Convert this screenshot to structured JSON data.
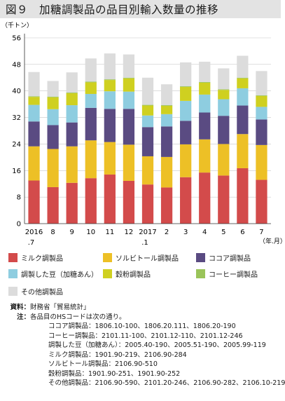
{
  "title": "図９　加糖調製品の品目別輸入数量の推移",
  "chart_data": {
    "type": "bar",
    "stacked": true,
    "unit_label": "（千トン）",
    "x_unit_label": "（年.月）",
    "ylim": [
      0,
      56
    ],
    "yticks": [
      0,
      8,
      16,
      24,
      32,
      40,
      48,
      56
    ],
    "grid": true,
    "categories": [
      "2016\n.7",
      "8",
      "9",
      "10",
      "11",
      "12",
      "2017\n.1",
      "2",
      "3",
      "4",
      "5",
      "6",
      "7"
    ],
    "series": [
      {
        "name": "ミルク調製品",
        "color": "#d34b4b",
        "values": [
          13.0,
          11.0,
          12.3,
          13.7,
          14.8,
          12.9,
          11.8,
          10.9,
          14.0,
          15.4,
          14.5,
          16.7,
          13.2
        ]
      },
      {
        "name": "ソルビトール調製品",
        "color": "#edc026",
        "values": [
          10.3,
          11.5,
          11.0,
          11.4,
          9.8,
          10.9,
          8.5,
          9.2,
          9.9,
          10.0,
          9.5,
          10.3,
          10.5
        ]
      },
      {
        "name": "ココア調製品",
        "color": "#5a4b82",
        "values": [
          7.5,
          7.2,
          7.2,
          9.8,
          10.0,
          10.8,
          8.8,
          9.2,
          7.1,
          8.1,
          8.5,
          8.6,
          7.7
        ]
      },
      {
        "name": "調製した豆（加糖あん）",
        "color": "#8ecde0",
        "values": [
          5.0,
          4.8,
          5.2,
          4.2,
          5.3,
          5.2,
          3.5,
          3.7,
          6.0,
          5.4,
          5.0,
          5.2,
          3.8
        ]
      },
      {
        "name": "穀粉調製品",
        "color": "#cfd020",
        "values": [
          2.4,
          3.6,
          3.6,
          3.5,
          3.4,
          4.0,
          3.0,
          2.5,
          4.2,
          3.6,
          2.8,
          3.0,
          3.3
        ]
      },
      {
        "name": "コーヒー調製品",
        "color": "#9ac45a",
        "values": [
          0.2,
          0.2,
          0.2,
          0.2,
          0.2,
          0.2,
          0.2,
          0.2,
          0.2,
          0.2,
          0.2,
          0.2,
          0.2
        ]
      },
      {
        "name": "その他調製品",
        "color": "#dcdcdc",
        "values": [
          7.3,
          4.7,
          6.1,
          7.0,
          7.8,
          7.0,
          8.2,
          6.3,
          7.2,
          6.1,
          6.3,
          6.6,
          7.3
        ]
      }
    ]
  },
  "notes": {
    "source_key": "資料：",
    "source_text": "財務省「貿易統計」",
    "note_key": "注：",
    "note_text": "各品目のHSコードは次の通り。",
    "codes": [
      {
        "name": "ココア調製品",
        "code": "：1806.10-100、1806.20.111、1806.20-190"
      },
      {
        "name": "コーヒー調製品",
        "code": "：2101.11-100、2101.12-110、2101.12-246"
      },
      {
        "name": "調製した豆（加糖あん）",
        "code": "：2005.40-190、2005.51-190、2005.99-119"
      },
      {
        "name": "ミルク調製品",
        "code": "：1901.90-219、2106.90-284"
      },
      {
        "name": "ソルビトール調製品",
        "code": "：2106.90-510"
      },
      {
        "name": "穀粉調製品",
        "code": "：1901.90-251、1901.90-252"
      },
      {
        "name": "その他調製品",
        "code": "：2106.90-590、2101.20-246、2106.90-282、2106.10-219"
      }
    ]
  }
}
